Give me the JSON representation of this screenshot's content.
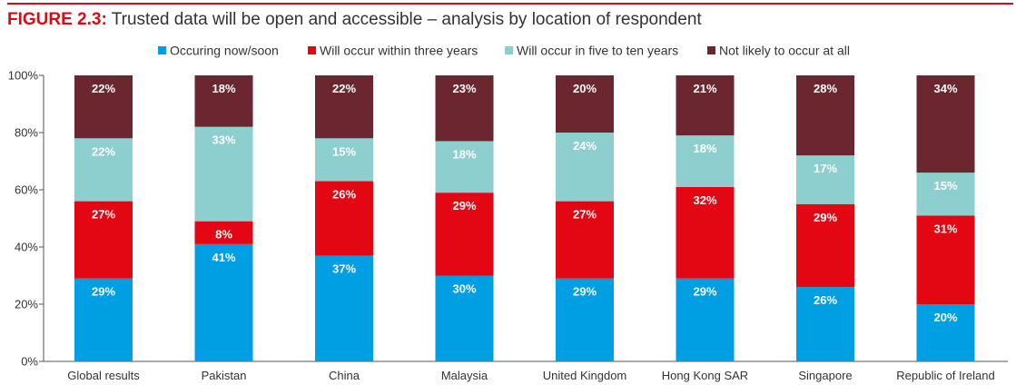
{
  "figure": {
    "label": "FIGURE 2.3:",
    "title": "Trusted data will be open and accessible – analysis by location of respondent",
    "accent_color": "#e30613"
  },
  "chart_data": {
    "type": "bar",
    "stacked": true,
    "categories": [
      "Global results",
      "Pakistan",
      "China",
      "Malaysia",
      "United Kingdom",
      "Hong Kong SAR",
      "Singapore",
      "Republic of Ireland"
    ],
    "series": [
      {
        "name": "Occuring now/soon",
        "color": "#009fe3",
        "values": [
          29,
          41,
          37,
          30,
          29,
          29,
          26,
          20
        ]
      },
      {
        "name": "Will occur within three years",
        "color": "#e30613",
        "values": [
          27,
          8,
          26,
          29,
          27,
          32,
          29,
          31
        ]
      },
      {
        "name": "Will occur in five to ten years",
        "color": "#8dcfcf",
        "values": [
          22,
          33,
          15,
          18,
          24,
          18,
          17,
          15
        ]
      },
      {
        "name": "Not likely to occur at all",
        "color": "#6b2630",
        "values": [
          22,
          18,
          22,
          23,
          20,
          21,
          28,
          34
        ]
      }
    ],
    "ylim": [
      0,
      100
    ],
    "yticks": [
      "0%",
      "20%",
      "40%",
      "60%",
      "80%",
      "100%"
    ],
    "value_suffix": "%",
    "legend_position": "top",
    "grid": false
  }
}
